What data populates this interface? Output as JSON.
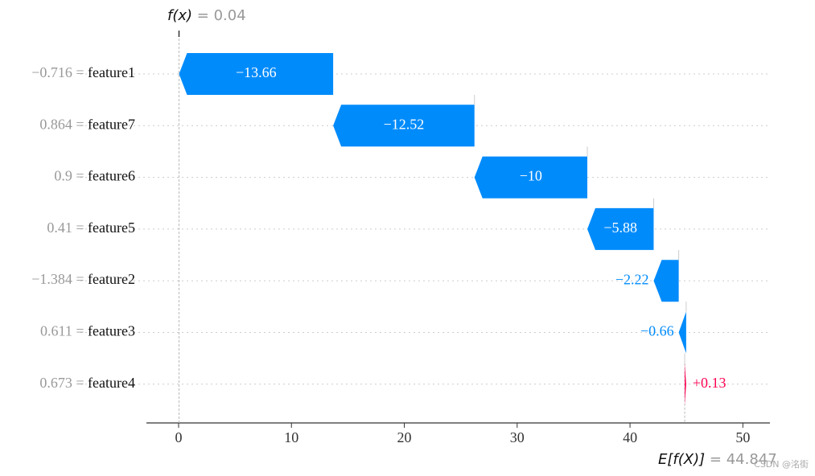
{
  "chart_data": {
    "type": "waterfall",
    "fx_label": "f(x)",
    "fx_value": 0.04,
    "ex_label": "E[f(X)]",
    "ex_value": 44.847,
    "separator": "=",
    "categories": [
      "feature1",
      "feature7",
      "feature6",
      "feature5",
      "feature2",
      "feature3",
      "feature4"
    ],
    "feature_values": [
      "−0.716",
      "0.864",
      "0.9",
      "0.41",
      "−1.384",
      "0.611",
      "0.673"
    ],
    "values": [
      -13.66,
      -12.52,
      -10,
      -5.88,
      -2.22,
      -0.66,
      0.13
    ],
    "value_labels": [
      "−13.66",
      "−12.52",
      "−10",
      "−5.88",
      "−2.22",
      "−0.66",
      "+0.13"
    ],
    "negative_color": "#008bfb",
    "positive_color": "#ff0051",
    "xlim": [
      -2.85,
      52.4
    ],
    "xticks": [
      0,
      10,
      20,
      30,
      40,
      50
    ],
    "watermark": "CSDN @洺街"
  }
}
